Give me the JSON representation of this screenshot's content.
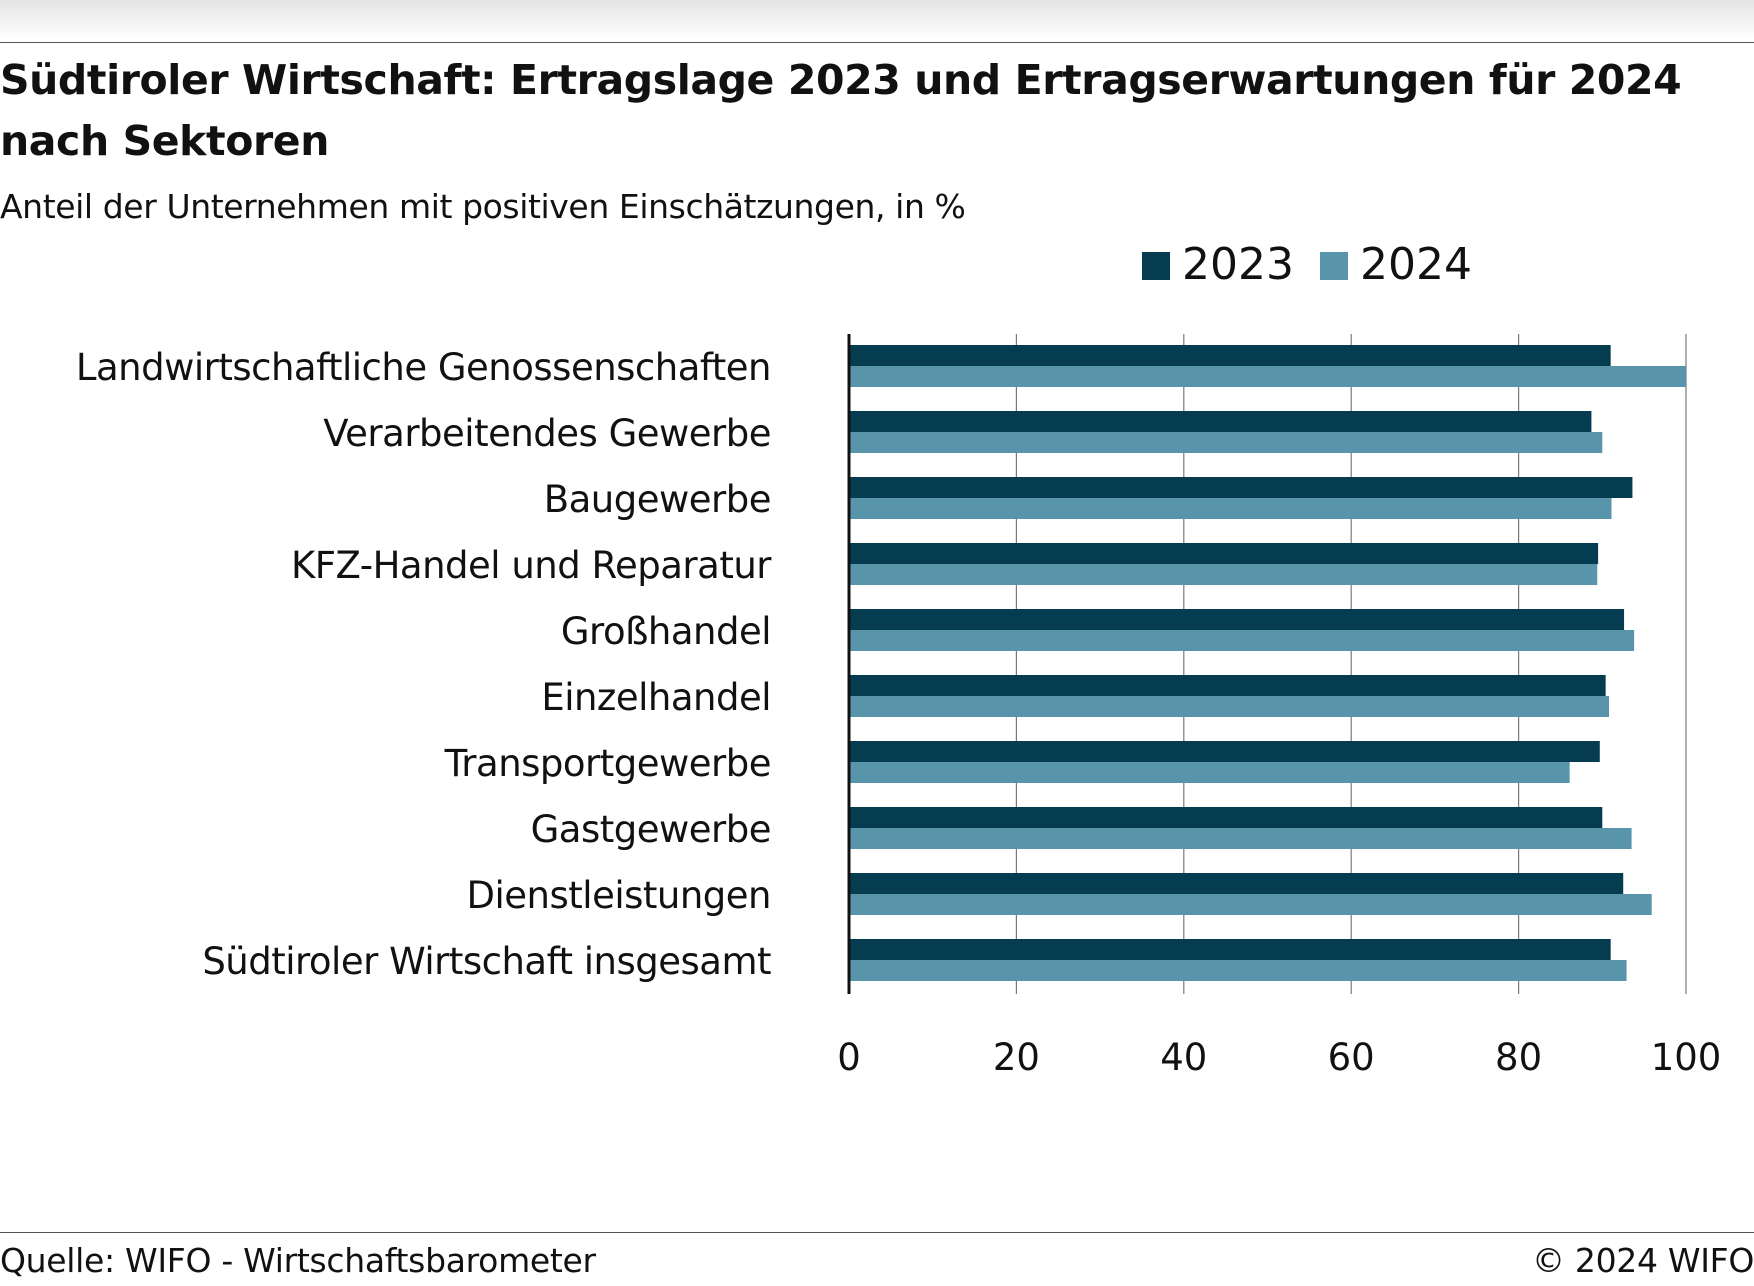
{
  "title": "Südtiroler Wirtschaft: Ertragslage 2023 und Ertragserwartungen für 2024 nach Sektoren",
  "subtitle": "Anteil der Unternehmen mit positiven Einschätzungen, in %",
  "footer": {
    "source": "Quelle: WIFO - Wirtschaftsbarometer",
    "copyright": "© 2024 WIFO"
  },
  "chart_data": {
    "type": "bar",
    "orientation": "horizontal",
    "categories": [
      "Landwirtschaftliche Genossenschaften",
      "Verarbeitendes Gewerbe",
      "Baugewerbe",
      "KFZ-Handel und Reparatur",
      "Großhandel",
      "Einzelhandel",
      "Transportgewerbe",
      "Gastgewerbe",
      "Dienstleistungen",
      "Südtiroler Wirtschaft insgesamt"
    ],
    "series": [
      {
        "name": "2023",
        "color": "#063c4f",
        "values": [
          91.0,
          88.7,
          93.6,
          89.5,
          92.6,
          90.4,
          89.7,
          90.0,
          92.5,
          91.0
        ]
      },
      {
        "name": "2024",
        "color": "#5895ab",
        "values": [
          100.0,
          90.0,
          91.1,
          89.4,
          93.8,
          90.8,
          86.1,
          93.5,
          95.9,
          92.9
        ]
      }
    ],
    "xlim": [
      0,
      100
    ],
    "xticks": [
      "0",
      "20",
      "40",
      "60",
      "80",
      "100"
    ],
    "grid": "vertical",
    "legend_position": "top-right"
  }
}
